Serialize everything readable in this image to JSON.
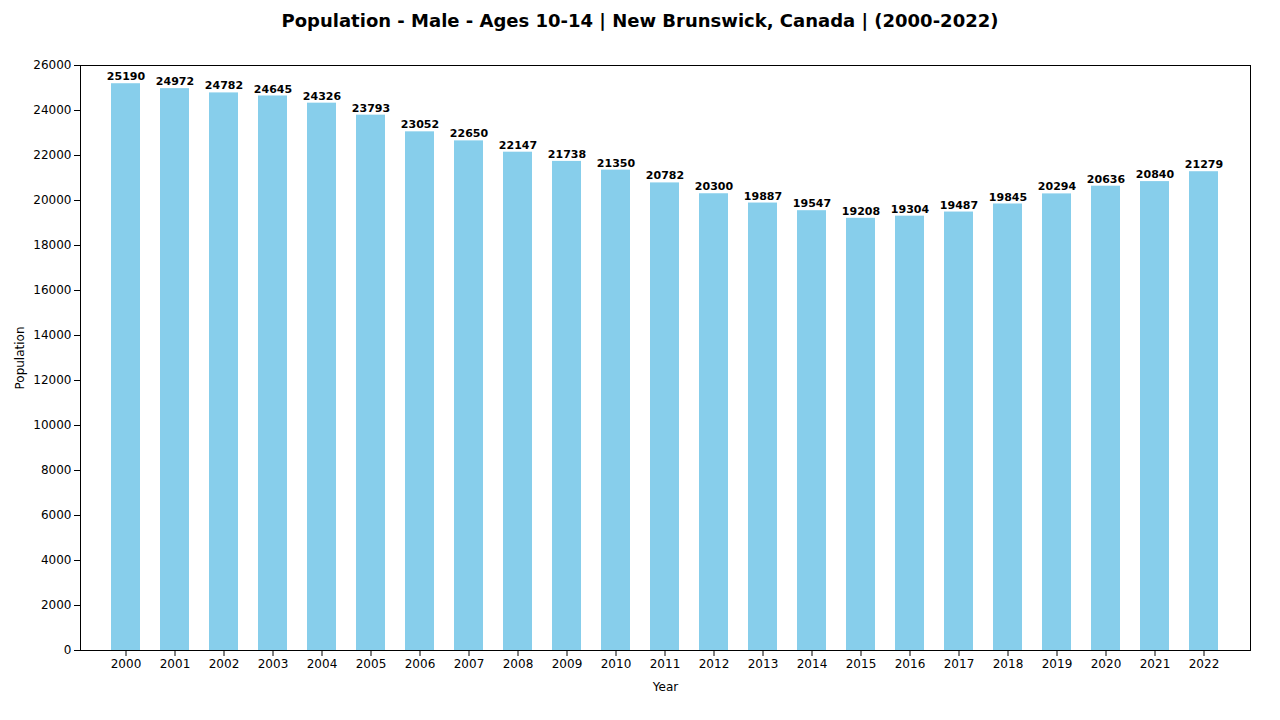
{
  "chart_data": {
    "type": "bar",
    "title": "Population - Male - Ages 10-14 | New Brunswick, Canada |  (2000-2022)",
    "xlabel": "Year",
    "ylabel": "Population",
    "categories": [
      "2000",
      "2001",
      "2002",
      "2003",
      "2004",
      "2005",
      "2006",
      "2007",
      "2008",
      "2009",
      "2010",
      "2011",
      "2012",
      "2013",
      "2014",
      "2015",
      "2016",
      "2017",
      "2018",
      "2019",
      "2020",
      "2021",
      "2022"
    ],
    "values": [
      25190,
      24972,
      24782,
      24645,
      24326,
      23793,
      23052,
      22650,
      22147,
      21738,
      21350,
      20782,
      20300,
      19887,
      19547,
      19208,
      19304,
      19487,
      19845,
      20294,
      20636,
      20840,
      21279
    ],
    "color": "#87CEEB",
    "ylim": [
      0,
      26000
    ],
    "yticks": [
      0,
      2000,
      4000,
      6000,
      8000,
      10000,
      12000,
      14000,
      16000,
      18000,
      20000,
      22000,
      24000,
      26000
    ],
    "grid": false,
    "data_labels": true
  }
}
